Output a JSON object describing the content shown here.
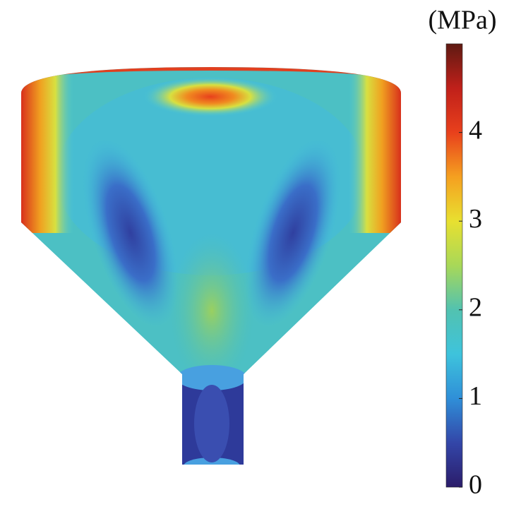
{
  "chart_data": {
    "type": "contour",
    "colorbar_label": "(MPa)",
    "clim": [
      0,
      5
    ],
    "cticks": [
      0,
      1,
      2,
      3,
      4
    ],
    "colormap": [
      "#2b1c6a",
      "#3346a8",
      "#2f8fd8",
      "#3ec3dc",
      "#52c2b0",
      "#a8d858",
      "#e8e030",
      "#f5a020",
      "#e8401c",
      "#c0201a",
      "#5e1a12"
    ]
  }
}
